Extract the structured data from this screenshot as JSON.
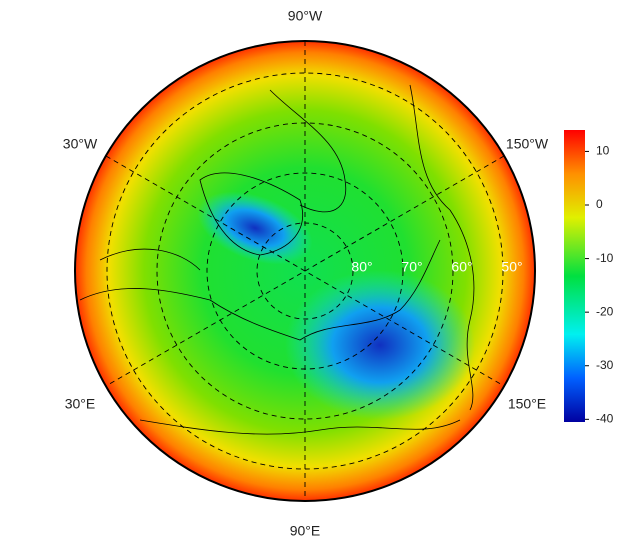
{
  "map": {
    "longitude_labels": {
      "top": "90°W",
      "upper_left": "30°W",
      "upper_right": "150°W",
      "lower_left": "30°E",
      "lower_right": "150°E",
      "bottom": "90°E"
    },
    "latitude_labels": [
      "80°",
      "70°",
      "60°",
      "50°"
    ],
    "colorbar": {
      "lim": [
        -40.5,
        14
      ],
      "ticks": [
        10,
        0,
        -10,
        -20,
        -30,
        -40
      ]
    }
  }
}
